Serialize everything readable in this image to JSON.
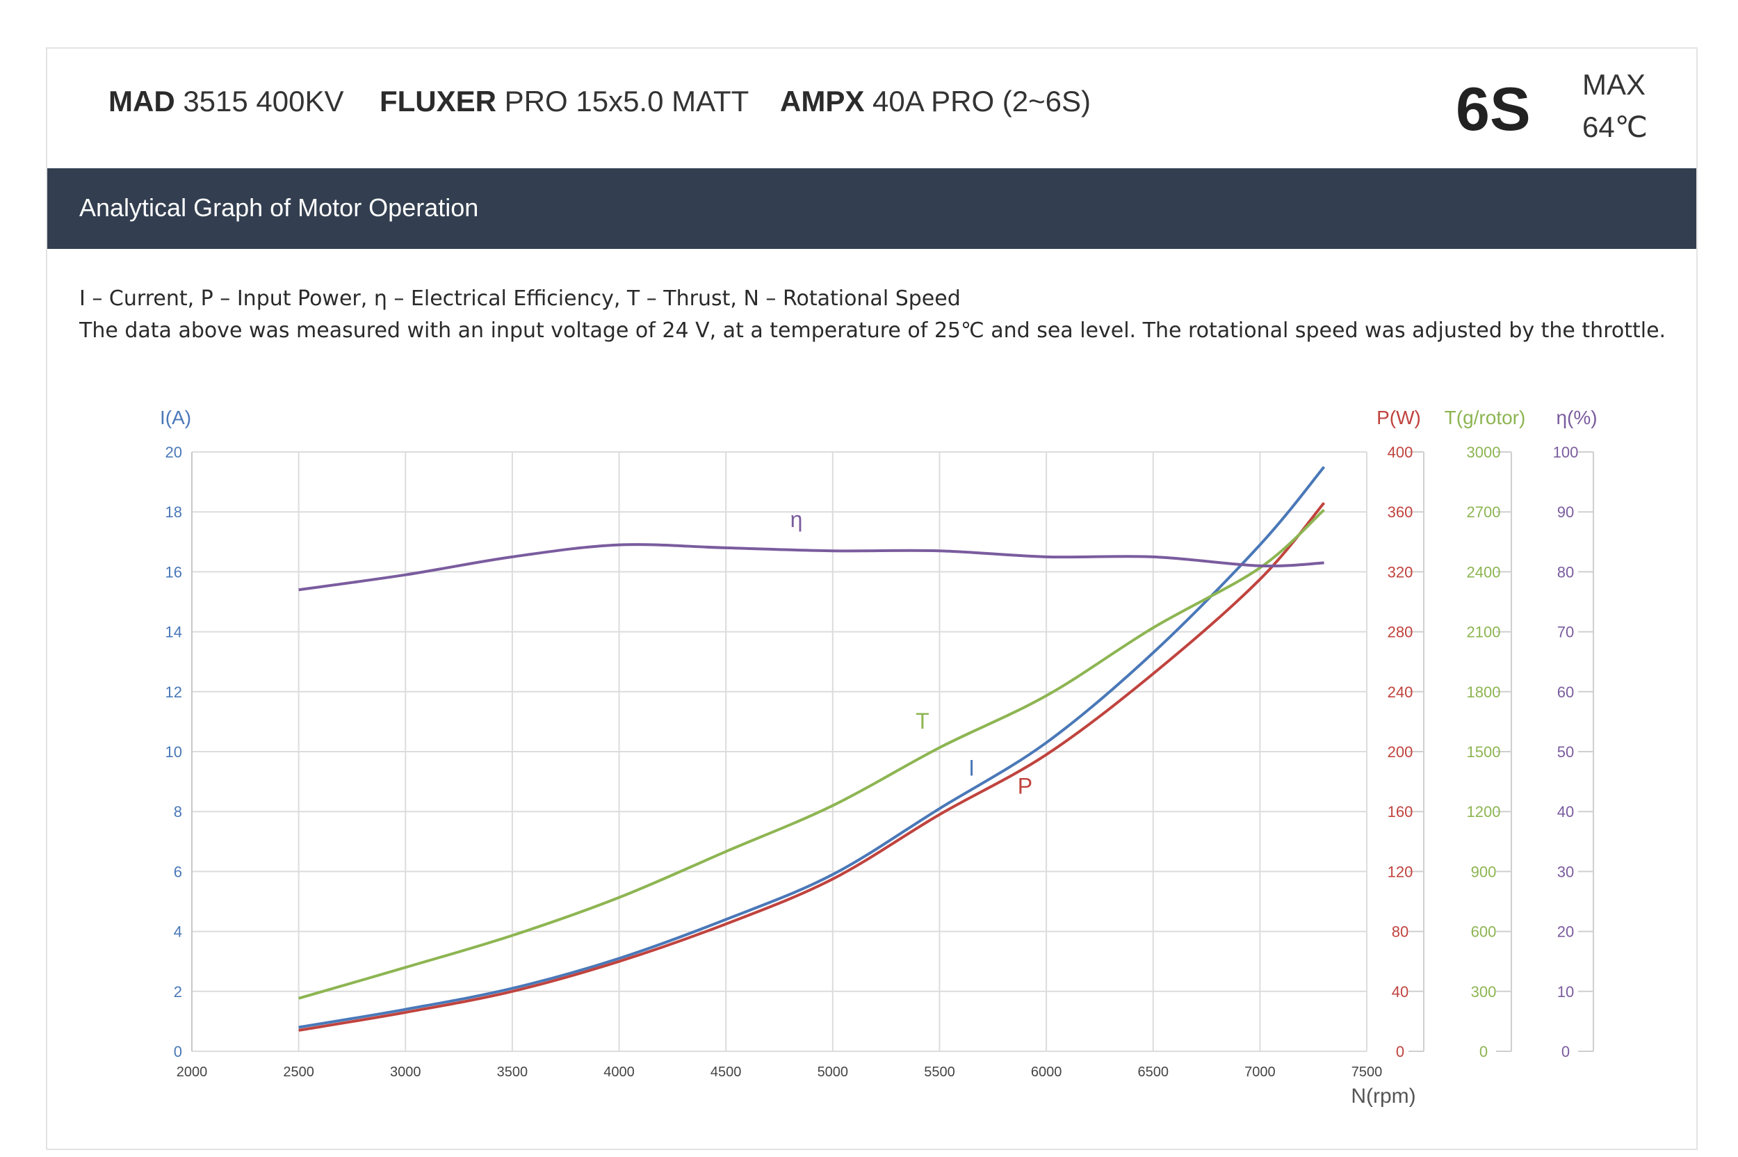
{
  "header": {
    "motor_brand": "MAD",
    "motor_model": "3515 400KV",
    "prop_brand": "FLUXER",
    "prop_model": "PRO 15x5.0 MATT",
    "esc_brand": "AMPX",
    "esc_model": "40A PRO (2~6S)",
    "voltage": "6S",
    "max_label": "MAX",
    "max_temp": "64℃"
  },
  "banner": {
    "title": "Analytical Graph of Motor Operation"
  },
  "notes": {
    "legend": "I – Current, P – Input Power, η – Electrical Efficiency, T – Thrust,   N – Rotational Speed",
    "conditions": "The data above was measured with an input voltage of 24 V, at a temperature of 25℃ and sea level. The rotational speed was adjusted by the throttle."
  },
  "colors": {
    "current": "#4a78b8",
    "power": "#c0433e",
    "thrust": "#8db552",
    "efficiency": "#7a5c9e",
    "grid": "#dcdcdc",
    "banner": "#333f50"
  },
  "chart_data": {
    "type": "line",
    "title": "",
    "xlabel": "N(rpm)",
    "xlim": [
      2000,
      7500
    ],
    "x_ticks": [
      2000,
      2500,
      3000,
      3500,
      4000,
      4500,
      5000,
      5500,
      6000,
      6500,
      7000,
      7500
    ],
    "x": [
      2500,
      3000,
      3500,
      4000,
      4500,
      5000,
      5500,
      6000,
      6500,
      7000,
      7300
    ],
    "axes": {
      "current": {
        "label": "I(A)",
        "ylim": [
          0,
          20
        ],
        "ticks": [
          0,
          2,
          4,
          6,
          8,
          10,
          12,
          14,
          16,
          18,
          20
        ]
      },
      "power": {
        "label": "P(W)",
        "ylim": [
          0,
          400
        ],
        "ticks": [
          0,
          40,
          80,
          120,
          160,
          200,
          240,
          280,
          320,
          360,
          400
        ]
      },
      "thrust": {
        "label": "T(g/rotor)",
        "ylim": [
          0,
          3000
        ],
        "ticks": [
          0,
          300,
          600,
          900,
          1200,
          1500,
          1800,
          2100,
          2400,
          2700,
          3000
        ]
      },
      "efficiency": {
        "label": "η(%)",
        "ylim": [
          0,
          100
        ],
        "ticks": [
          0,
          10,
          20,
          30,
          40,
          50,
          60,
          70,
          80,
          90,
          100
        ]
      }
    },
    "series": [
      {
        "name": "I",
        "axis": "current",
        "values": [
          0.8,
          1.4,
          2.1,
          3.1,
          4.4,
          5.9,
          8.1,
          10.3,
          13.3,
          16.9,
          19.5
        ]
      },
      {
        "name": "P",
        "axis": "power",
        "values": [
          14,
          26,
          40,
          60,
          85,
          115,
          158,
          198,
          252,
          315,
          366
        ]
      },
      {
        "name": "T",
        "axis": "thrust",
        "values": [
          265,
          420,
          580,
          770,
          1000,
          1230,
          1520,
          1780,
          2120,
          2420,
          2710
        ]
      },
      {
        "name": "η",
        "axis": "efficiency",
        "values": [
          77,
          79.5,
          82.5,
          84.5,
          84,
          83.5,
          83.5,
          82.5,
          82.5,
          81,
          81.5
        ]
      }
    ],
    "series_label_values": [
      {
        "name": "η",
        "x": 4830,
        "y": 87.5
      },
      {
        "name": "T",
        "x": 5420,
        "y": 1615
      },
      {
        "name": "I",
        "x": 5650,
        "y": 9.2
      },
      {
        "name": "P",
        "x": 5900,
        "y": 172
      }
    ]
  }
}
